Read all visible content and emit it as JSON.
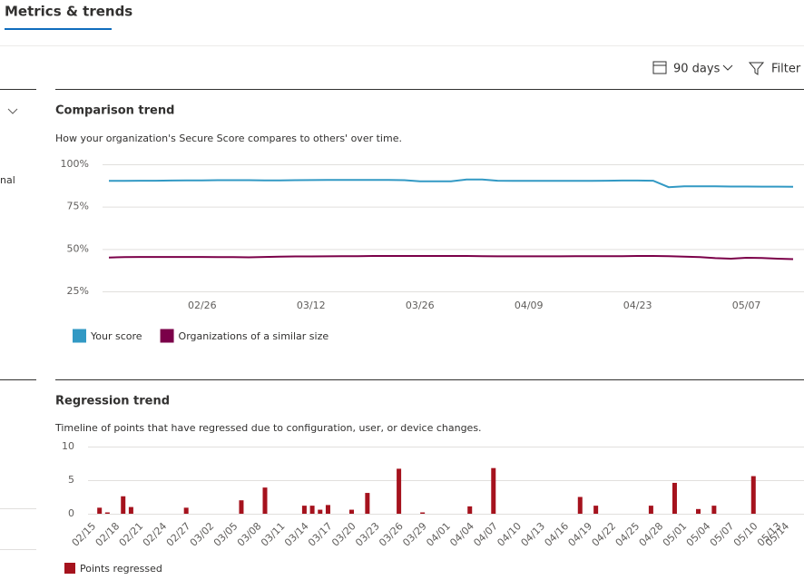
{
  "header": {
    "tab": "Metrics & trends"
  },
  "toolbar": {
    "range": "90 days",
    "filter": "Filter"
  },
  "left_panel": {
    "text": "nal"
  },
  "chart_data": [
    {
      "type": "line",
      "title": "Comparison trend",
      "subtitle": "How your organization's Secure Score compares to others' over time.",
      "categories": [
        null,
        null,
        null,
        null,
        null,
        null,
        "02/26",
        null,
        null,
        null,
        null,
        null,
        null,
        "03/12",
        null,
        null,
        null,
        null,
        null,
        null,
        "03/26",
        null,
        null,
        null,
        null,
        null,
        null,
        "04/09",
        null,
        null,
        null,
        null,
        null,
        null,
        "04/23",
        null,
        null,
        null,
        null,
        null,
        null,
        "05/07",
        null,
        null,
        null
      ],
      "ylim": [
        25,
        100
      ],
      "yticks": [
        {
          "value": 25,
          "label": "25%"
        },
        {
          "value": 50,
          "label": "50%"
        },
        {
          "value": 75,
          "label": "75%"
        },
        {
          "value": 100,
          "label": "100%"
        }
      ],
      "grid": true,
      "series": [
        {
          "name": "Your score",
          "color": "#3299c4",
          "values": [
            90.2,
            90.2,
            90.3,
            90.3,
            90.4,
            90.5,
            90.5,
            90.6,
            90.6,
            90.6,
            90.5,
            90.5,
            90.6,
            90.7,
            90.8,
            90.8,
            90.8,
            90.8,
            90.8,
            90.6,
            90,
            90,
            90,
            91,
            91,
            90.3,
            90.2,
            90.2,
            90.2,
            90.2,
            90.2,
            90.2,
            90.3,
            90.4,
            90.4,
            90.3,
            86.5,
            87,
            87,
            87,
            86.9,
            86.9,
            86.8,
            86.8,
            86.7
          ]
        },
        {
          "name": "Organizations of a similar size",
          "color": "#7b0049",
          "values": [
            45,
            45.2,
            45.3,
            45.3,
            45.3,
            45.3,
            45.3,
            45.2,
            45.2,
            45.1,
            45.3,
            45.5,
            45.6,
            45.6,
            45.7,
            45.8,
            45.8,
            45.9,
            45.9,
            45.9,
            45.9,
            45.9,
            45.9,
            45.9,
            45.8,
            45.7,
            45.7,
            45.7,
            45.7,
            45.7,
            45.8,
            45.8,
            45.8,
            45.8,
            45.9,
            45.9,
            45.8,
            45.5,
            45.2,
            44.6,
            44.3,
            44.8,
            44.7,
            44.3,
            44
          ]
        }
      ]
    },
    {
      "type": "bar",
      "title": "Regression trend",
      "subtitle": "Timeline of points that have regressed due to configuration, user, or device changes.",
      "categories": [
        "02/15",
        null,
        null,
        "02/18",
        null,
        null,
        "02/21",
        null,
        null,
        "02/24",
        null,
        null,
        "02/27",
        null,
        null,
        "03/02",
        null,
        null,
        "03/05",
        null,
        null,
        "03/08",
        null,
        null,
        "03/11",
        null,
        null,
        "03/14",
        null,
        null,
        "03/17",
        null,
        null,
        "03/20",
        null,
        null,
        "03/23",
        null,
        null,
        "03/26",
        null,
        null,
        "03/29",
        null,
        null,
        "04/01",
        null,
        null,
        "04/04",
        null,
        null,
        "04/07",
        null,
        null,
        "04/10",
        null,
        null,
        "04/13",
        null,
        null,
        "04/16",
        null,
        null,
        "04/19",
        null,
        null,
        "04/22",
        null,
        null,
        "04/25",
        null,
        null,
        "04/28",
        null,
        null,
        "05/01",
        null,
        null,
        "05/04",
        null,
        null,
        "05/07",
        null,
        null,
        "05/10",
        null,
        null,
        "05/13",
        "05/14"
      ],
      "ylim": [
        0,
        10
      ],
      "yticks": [
        0,
        5,
        10
      ],
      "grid": true,
      "series": [
        {
          "name": "Points regressed",
          "color": "#a5121d",
          "values": [
            0,
            0.9,
            0.2,
            0,
            2.6,
            1,
            0,
            0,
            0,
            0,
            0,
            0,
            0.9,
            0,
            0,
            0,
            0,
            0,
            0,
            2,
            0,
            0,
            3.9,
            0,
            0,
            0,
            0,
            1.2,
            1.2,
            0.6,
            1.3,
            0,
            0,
            0.6,
            0,
            3.1,
            0,
            0,
            0,
            6.7,
            0,
            0,
            0.2,
            0,
            0,
            0,
            0,
            0,
            1.1,
            0,
            0,
            6.8,
            0,
            0,
            0,
            0,
            0,
            0,
            0,
            0,
            0,
            0,
            2.5,
            0,
            1.2,
            0,
            0,
            0,
            0,
            0,
            0,
            1.2,
            0,
            0,
            4.6,
            0,
            0,
            0.7,
            0,
            1.2,
            0,
            0,
            0,
            0,
            5.6,
            0,
            0,
            0,
            0
          ]
        }
      ]
    }
  ]
}
